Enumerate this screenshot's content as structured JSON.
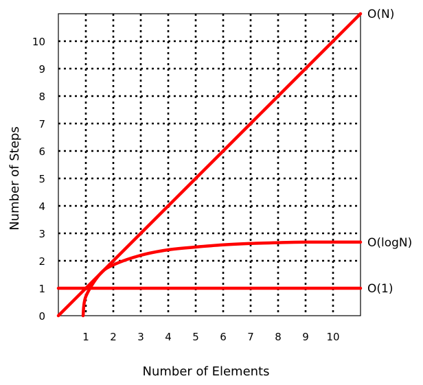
{
  "chart_data": {
    "type": "line",
    "title": "",
    "xlabel": "Number of Elements",
    "ylabel": "Number of Steps",
    "xlim": [
      0,
      11
    ],
    "ylim": [
      0,
      11
    ],
    "grid": true,
    "x_ticks": [
      "1",
      "2",
      "3",
      "4",
      "5",
      "6",
      "7",
      "8",
      "9",
      "10"
    ],
    "y_ticks": [
      "0",
      "1",
      "2",
      "3",
      "4",
      "5",
      "6",
      "7",
      "8",
      "9",
      "10"
    ],
    "series": [
      {
        "name": "O(N)",
        "color": "#ff0000",
        "x": [
          0,
          1,
          2,
          3,
          4,
          5,
          6,
          7,
          8,
          9,
          10,
          11
        ],
        "y": [
          0,
          1,
          2,
          3,
          4,
          5,
          6,
          7,
          8,
          9,
          10,
          11
        ]
      },
      {
        "name": "O(logN)",
        "color": "#ff0000",
        "x": [
          0.9,
          1,
          1.5,
          2,
          3,
          4,
          5,
          6,
          7,
          8,
          9,
          10,
          11
        ],
        "y": [
          0,
          0.7,
          1.5,
          1.85,
          2.2,
          2.4,
          2.5,
          2.58,
          2.63,
          2.66,
          2.68,
          2.68,
          2.68
        ]
      },
      {
        "name": "O(1)",
        "color": "#ff0000",
        "x": [
          0,
          11
        ],
        "y": [
          1,
          1
        ]
      }
    ]
  }
}
